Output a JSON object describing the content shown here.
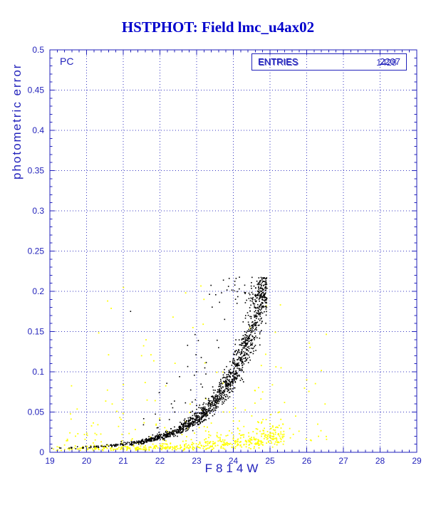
{
  "page": {
    "title": "HSTPHOT: Field lmc_u4ax02"
  },
  "colors": {
    "title": "#0000cc",
    "axis": "#2222bb",
    "grid": "#2222bb",
    "text": "#2222bb",
    "black_series": "#000000",
    "yellow_series": "#ffff00",
    "background": "#ffffff"
  },
  "annotations": {
    "chip_label": "PC",
    "entries_box": {
      "label": "ENTRIES",
      "values": [
        "2207",
        "1428"
      ]
    }
  },
  "chart_data": {
    "type": "scatter",
    "title": "HSTPHOT: Field lmc_u4ax02",
    "xlabel": "F814W",
    "ylabel": "photometric error",
    "xlim": [
      19,
      29
    ],
    "ylim": [
      0,
      0.5
    ],
    "x_ticks": [
      19,
      20,
      21,
      22,
      23,
      24,
      25,
      26,
      27,
      28,
      29
    ],
    "y_ticks": [
      0,
      0.05,
      0.1,
      0.15,
      0.2,
      0.25,
      0.3,
      0.35,
      0.4,
      0.45,
      0.5
    ],
    "y_tick_labels": [
      "0",
      "0.05",
      "0.1",
      "0.15",
      "0.2",
      "0.25",
      "0.3",
      "0.35",
      "0.4",
      "0.45",
      "0.5"
    ],
    "x_minor_step": 0.2,
    "y_minor_step": 0.01,
    "grid": "dotted",
    "legend": "none",
    "series": [
      {
        "name": "PC chip detections (black)",
        "color": "#000000",
        "marker_px": 1.6,
        "entries": 2207,
        "sample_points": [
          [
            19.05,
            0.005
          ],
          [
            19.3,
            0.0052
          ],
          [
            19.6,
            0.0055
          ],
          [
            19.9,
            0.006
          ],
          [
            20.2,
            0.0065
          ],
          [
            20.5,
            0.0075
          ],
          [
            20.8,
            0.009
          ],
          [
            21.1,
            0.0105
          ],
          [
            21.4,
            0.0125
          ],
          [
            21.7,
            0.015
          ],
          [
            22.0,
            0.019
          ],
          [
            22.3,
            0.023
          ],
          [
            22.6,
            0.029
          ],
          [
            22.9,
            0.038
          ],
          [
            23.2,
            0.048
          ],
          [
            23.5,
            0.062
          ],
          [
            23.8,
            0.08
          ],
          [
            24.0,
            0.098
          ],
          [
            24.2,
            0.117
          ],
          [
            24.4,
            0.142
          ],
          [
            24.6,
            0.17
          ],
          [
            24.75,
            0.195
          ],
          [
            24.85,
            0.212
          ],
          [
            21.2,
            0.175
          ],
          [
            23.0,
            0.1
          ],
          [
            23.6,
            0.13
          ],
          [
            24.1,
            0.185
          ],
          [
            22.4,
            0.05
          ]
        ],
        "components": [
          {
            "kind": "error_curve",
            "seed": 11,
            "render_count": 1500,
            "m_min": 19.0,
            "m_span": 5.93,
            "m_pow": 0.35,
            "m_max": 24.92,
            "err_floor": 0.004,
            "err_amp": 0.2,
            "dex_per_mag": 0.4,
            "m_ref": 24.82,
            "scatter_dex": 0.05,
            "outlier_frac": 0.05,
            "outlier_min_dex": 0.15,
            "outlier_max_dex": 0.6,
            "outlier_m_min": 21.3,
            "outlier_m_max": 24.6,
            "err_min": 0.0035,
            "err_max": 0.218
          }
        ]
      },
      {
        "name": "flagged detections (yellow)",
        "color": "#ffff00",
        "marker_px": 1.8,
        "entries": 1428,
        "sample_points": [
          [
            19.1,
            0.004
          ],
          [
            19.4,
            0.009
          ],
          [
            19.7,
            0.02
          ],
          [
            20.0,
            0.006
          ],
          [
            20.4,
            0.013
          ],
          [
            20.7,
            0.06
          ],
          [
            21.0,
            0.008
          ],
          [
            21.5,
            0.12
          ],
          [
            21.9,
            0.035
          ],
          [
            22.2,
            0.01
          ],
          [
            22.6,
            0.022
          ],
          [
            22.9,
            0.155
          ],
          [
            23.2,
            0.19
          ],
          [
            23.5,
            0.012
          ],
          [
            23.9,
            0.05
          ],
          [
            24.2,
            0.009
          ],
          [
            24.5,
            0.016
          ],
          [
            24.8,
            0.075
          ],
          [
            25.0,
            0.02
          ],
          [
            25.3,
            0.105
          ],
          [
            25.7,
            0.045
          ],
          [
            26.0,
            0.09
          ],
          [
            26.3,
            0.035
          ],
          [
            26.5,
            0.06
          ]
        ],
        "components": [
          {
            "kind": "error_curve",
            "seed": 23,
            "render_count": 520,
            "m_min": 19.0,
            "m_span": 6.4,
            "m_pow": 0.55,
            "m_max": 25.45,
            "err_floor": 0.0045,
            "err_amp": 0.02,
            "dex_per_mag": 0.35,
            "m_ref": 25.4,
            "scatter_dex": 0.17,
            "outlier_frac": 0.04,
            "outlier_min_dex": 0.35,
            "outlier_max_dex": 0.95,
            "outlier_m_min": 19.5,
            "outlier_m_max": 25.0,
            "err_min": 0.002,
            "err_max": 0.12
          },
          {
            "kind": "log_uniform",
            "seed": 37,
            "render_count": 115,
            "m_min": 19.4,
            "m_span": 7.2,
            "log_err_min": -1.85,
            "log_err_max": -0.68,
            "skew_pow": 1.4
          }
        ]
      }
    ]
  }
}
